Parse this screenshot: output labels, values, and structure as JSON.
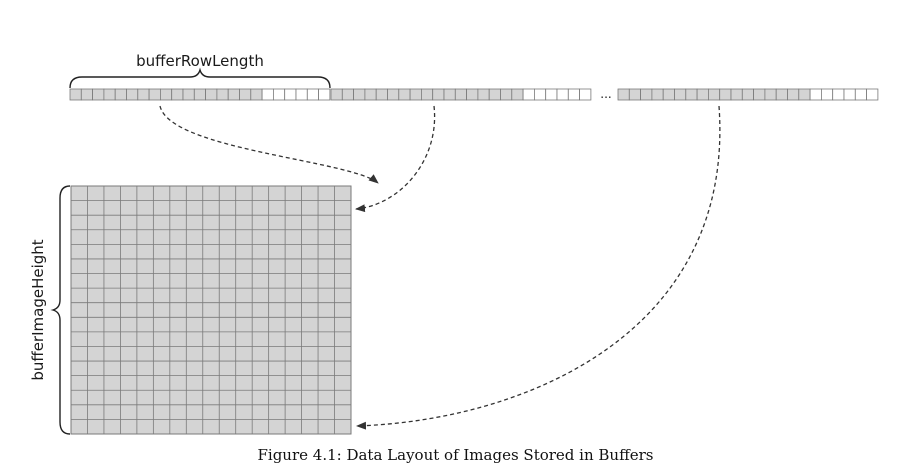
{
  "labels": {
    "row_length": "bufferRowLength",
    "image_height": "bufferImageHeight",
    "ellipsis": "..."
  },
  "caption": "Figure 4.1: Data Layout of Images Stored in Buffers",
  "buffer_strip": {
    "segments": [
      {
        "filled_cells": 17,
        "empty_cells": 6
      },
      {
        "filled_cells": 17,
        "empty_cells": 6
      },
      {
        "filled_cells": 17,
        "empty_cells": 6
      }
    ]
  },
  "image_grid": {
    "columns": 17,
    "rows": 17
  },
  "colors": {
    "filled_cell": "#d4d4d4",
    "empty_cell": "#ffffff",
    "grid_line": "#7a7a7a",
    "arrow": "#333333"
  }
}
